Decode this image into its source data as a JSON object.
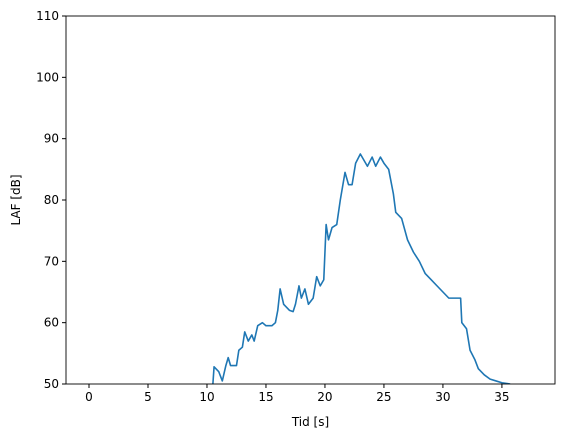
{
  "chart_data": {
    "type": "line",
    "xlabel": "Tid [s]",
    "ylabel": "LAF [dB]",
    "xlim": [
      -1.95,
      39.5
    ],
    "ylim": [
      50,
      110
    ],
    "xticks": [
      0,
      5,
      10,
      15,
      20,
      25,
      30,
      35
    ],
    "yticks": [
      50,
      60,
      70,
      80,
      90,
      100,
      110
    ],
    "series": [
      {
        "color": "#1f77b4",
        "x": [
          10.5,
          10.6,
          11,
          11.3,
          11.6,
          11.8,
          12,
          12.5,
          12.7,
          13,
          13.2,
          13.5,
          13.8,
          14,
          14.3,
          14.7,
          15,
          15.5,
          15.8,
          16,
          16.2,
          16.5,
          17,
          17.3,
          17.5,
          17.8,
          18,
          18.3,
          18.6,
          19,
          19.3,
          19.6,
          19.9,
          20.1,
          20.3,
          20.6,
          21,
          21.3,
          21.7,
          22,
          22.3,
          22.6,
          23,
          23.3,
          23.6,
          24,
          24.3,
          24.7,
          25,
          25.4,
          25.8,
          26,
          26.5,
          27,
          27.5,
          28,
          28.5,
          29,
          29.5,
          30,
          30.5,
          31,
          31.5,
          31.6,
          32,
          32.3,
          32.7,
          33,
          33.5,
          34,
          34.5,
          35,
          35.7
        ],
        "values": [
          50,
          52.8,
          52,
          50.5,
          53,
          54.3,
          53,
          53,
          55.5,
          56,
          58.5,
          57,
          58,
          57,
          59.5,
          60,
          59.5,
          59.5,
          60,
          62,
          65.5,
          63,
          62,
          61.8,
          63,
          66,
          64,
          65.5,
          63,
          64,
          67.5,
          66,
          67,
          76,
          73.5,
          75.5,
          76,
          80,
          84.5,
          82.5,
          82.5,
          86,
          87.5,
          86.5,
          85.5,
          87,
          85.5,
          87,
          86,
          85,
          81,
          78,
          77,
          73.5,
          71.5,
          70,
          68,
          67,
          66,
          65,
          64,
          64,
          64,
          60,
          59,
          55.5,
          54,
          52.5,
          51.5,
          50.8,
          50.5,
          50.2,
          50
        ]
      }
    ]
  }
}
